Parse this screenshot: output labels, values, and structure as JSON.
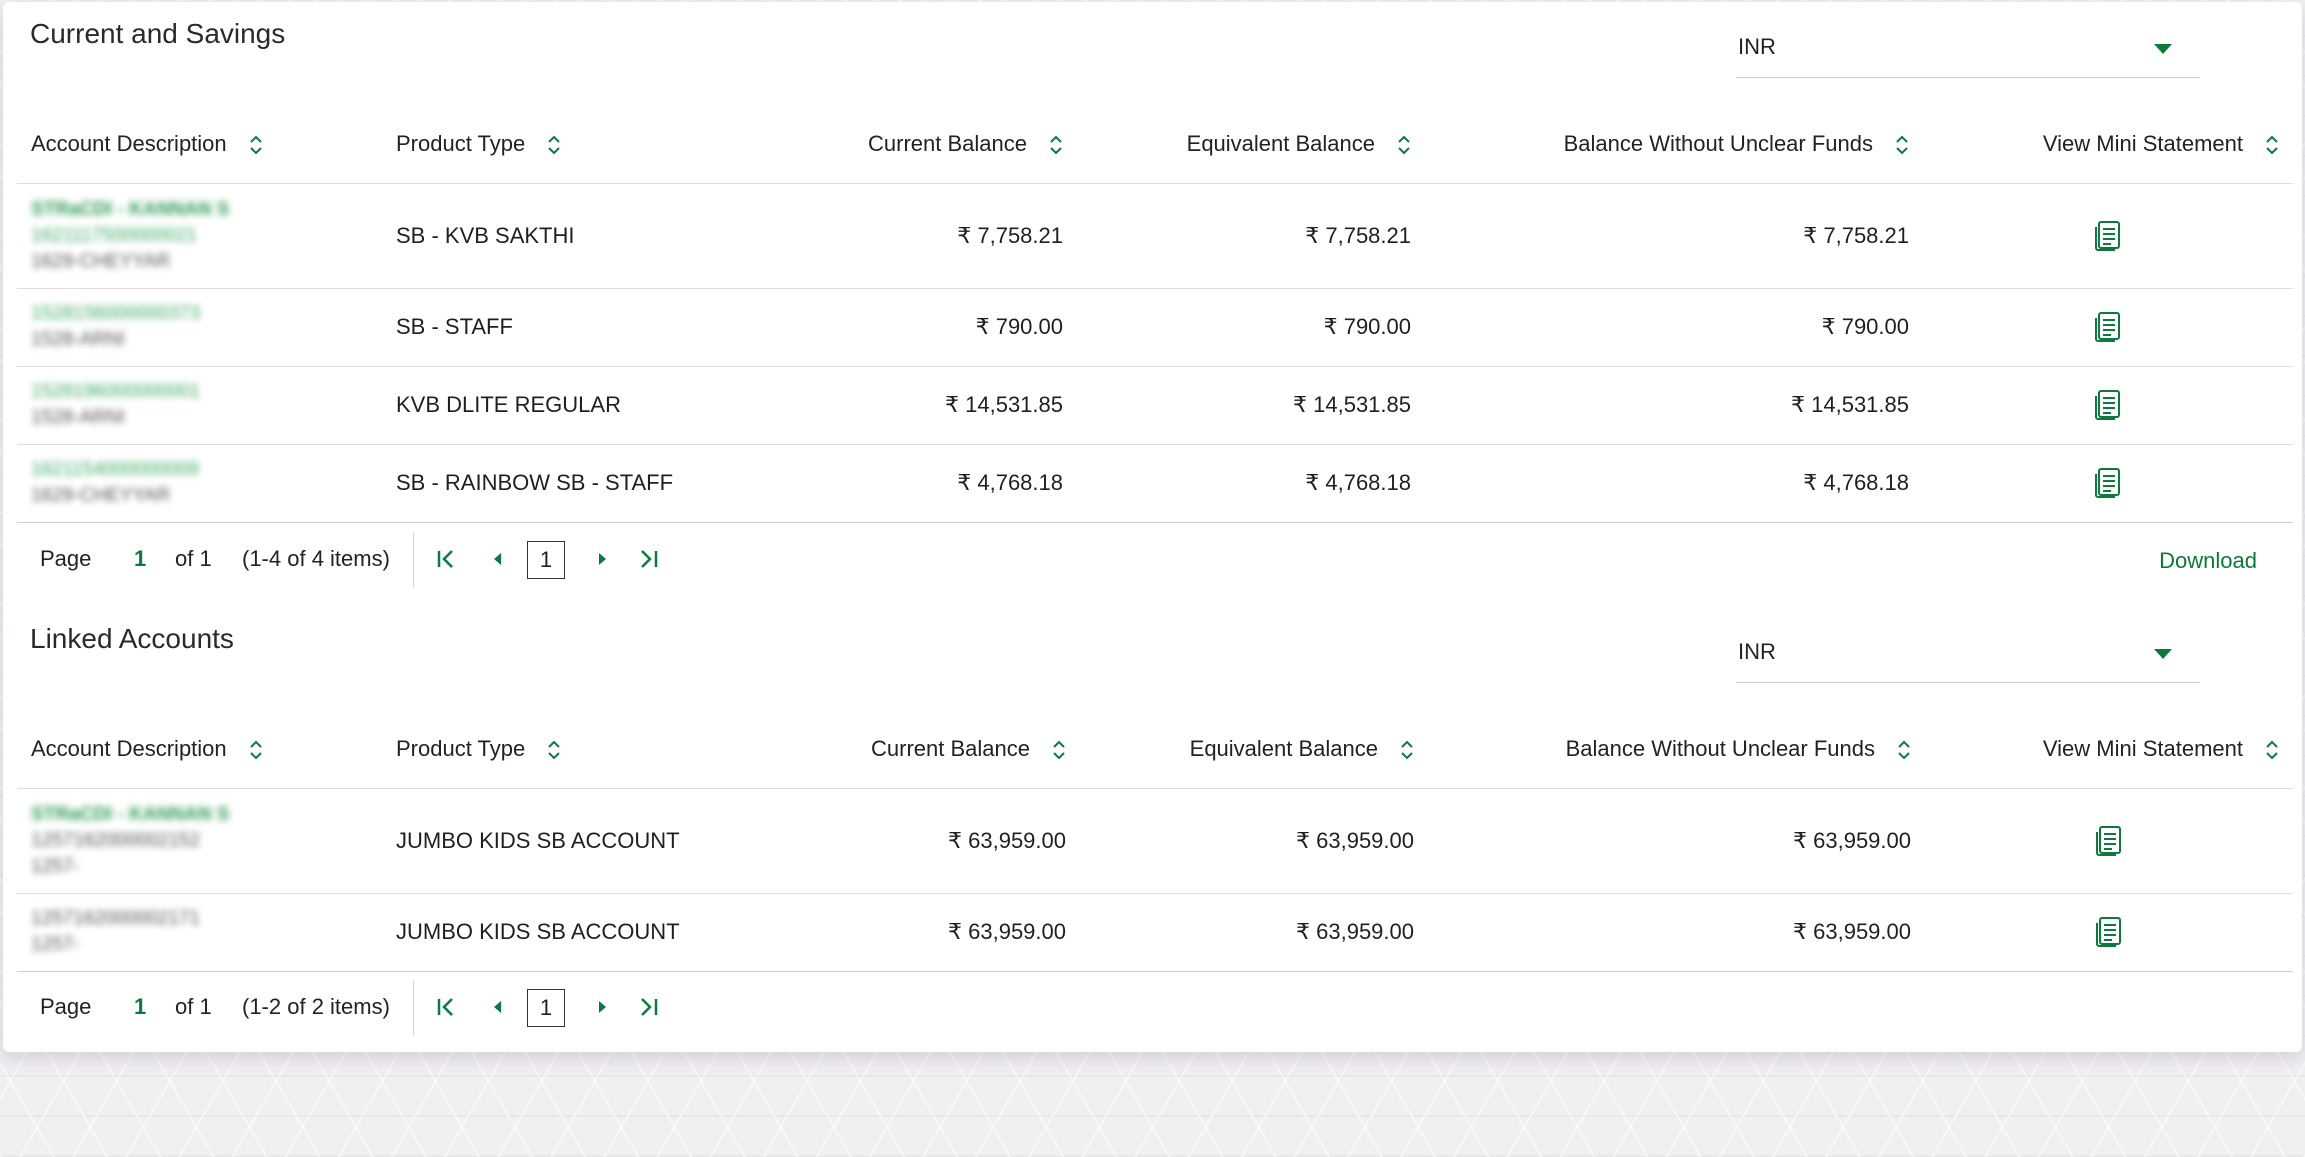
{
  "colors": {
    "accent": "#0c7a3c",
    "text": "#1f1f1f",
    "border": "#dedede"
  },
  "icons": {
    "sort": "sort-updown-icon",
    "mini_statement": "document-icon",
    "currency_dropdown": "caret-down-icon"
  },
  "current_savings": {
    "title": "Current and Savings",
    "currency": "INR",
    "columns": [
      "Account Description",
      "Product Type",
      "Current Balance",
      "Equivalent Balance",
      "Balance Without Unclear Funds",
      "View Mini Statement"
    ],
    "rows": [
      {
        "account_line1": "STRaCDI - KANNAN S",
        "account_line2": "1621117500000021",
        "account_line3": "1629-CHEYYAR",
        "product_type": "SB - KVB SAKTHI",
        "current_balance": "₹ 7,758.21",
        "equivalent_balance": "₹ 7,758.21",
        "balance_without_unclear": "₹ 7,758.21"
      },
      {
        "account_line1": "",
        "account_line2": "1528156000000373",
        "account_line3": "1528-ARNI",
        "product_type": "SB - STAFF",
        "current_balance": "₹ 790.00",
        "equivalent_balance": "₹ 790.00",
        "balance_without_unclear": "₹ 790.00"
      },
      {
        "account_line1": "",
        "account_line2": "1528196000000001",
        "account_line3": "1528-ARNI",
        "product_type": "KVB DLITE REGULAR",
        "current_balance": "₹ 14,531.85",
        "equivalent_balance": "₹ 14,531.85",
        "balance_without_unclear": "₹ 14,531.85"
      },
      {
        "account_line1": "",
        "account_line2": "1621154000000009",
        "account_line3": "1629-CHEYYAR",
        "product_type": "SB - RAINBOW SB - STAFF",
        "current_balance": "₹ 4,768.18",
        "equivalent_balance": "₹ 4,768.18",
        "balance_without_unclear": "₹ 4,768.18"
      }
    ],
    "pager": {
      "page_label": "Page",
      "page": "1",
      "of": "of 1",
      "items": "(1-4 of 4 items)",
      "input_value": "1",
      "download": "Download"
    }
  },
  "linked_accounts": {
    "title": "Linked Accounts",
    "currency": "INR",
    "columns": [
      "Account Description",
      "Product Type",
      "Current Balance",
      "Equivalent Balance",
      "Balance Without Unclear Funds",
      "View Mini Statement"
    ],
    "rows": [
      {
        "account_line1": "STRaCDI - KANNAN S",
        "account_line2": "1257162000002152",
        "account_line3": "1257-",
        "product_type": "JUMBO KIDS SB ACCOUNT",
        "current_balance": "₹ 63,959.00",
        "equivalent_balance": "₹ 63,959.00",
        "balance_without_unclear": "₹ 63,959.00"
      },
      {
        "account_line1": "",
        "account_line2": "1257162000002171",
        "account_line3": "1257-",
        "product_type": "JUMBO KIDS SB ACCOUNT",
        "current_balance": "₹ 63,959.00",
        "equivalent_balance": "₹ 63,959.00",
        "balance_without_unclear": "₹ 63,959.00"
      }
    ],
    "pager": {
      "page_label": "Page",
      "page": "1",
      "of": "of 1",
      "items": "(1-2 of 2 items)",
      "input_value": "1"
    }
  }
}
